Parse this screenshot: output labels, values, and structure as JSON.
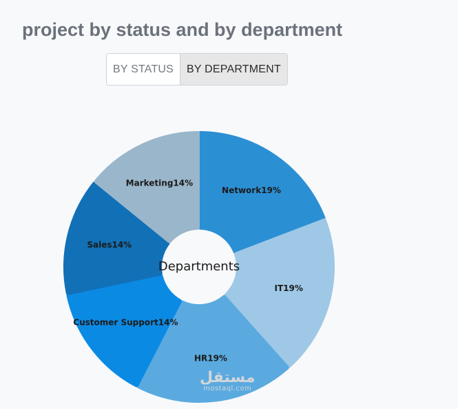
{
  "header": {
    "title": "project by status and by department"
  },
  "toggle": {
    "by_status": "BY STATUS",
    "by_department": "BY DEPARTMENT",
    "active": "by_department"
  },
  "chart_data": {
    "type": "pie",
    "center_label": "Departments",
    "slices": [
      {
        "label": "Network",
        "value": 19,
        "display": "Network19%",
        "color": "#2b8fd4"
      },
      {
        "label": "IT",
        "value": 19,
        "display": "IT19%",
        "color": "#9ec8e6"
      },
      {
        "label": "HR",
        "value": 19,
        "display": "HR19%",
        "color": "#5aaae0"
      },
      {
        "label": "Customer Support",
        "value": 14,
        "display": "Customer Support14%",
        "color": "#0b8ae4"
      },
      {
        "label": "Sales",
        "value": 14,
        "display": "Sales14%",
        "color": "#1170b6"
      },
      {
        "label": "Marketing",
        "value": 14,
        "display": "Marketing14%",
        "color": "#9ab6cb"
      }
    ]
  },
  "watermark": {
    "main": "مستقل",
    "sub": "mostaql.com"
  }
}
